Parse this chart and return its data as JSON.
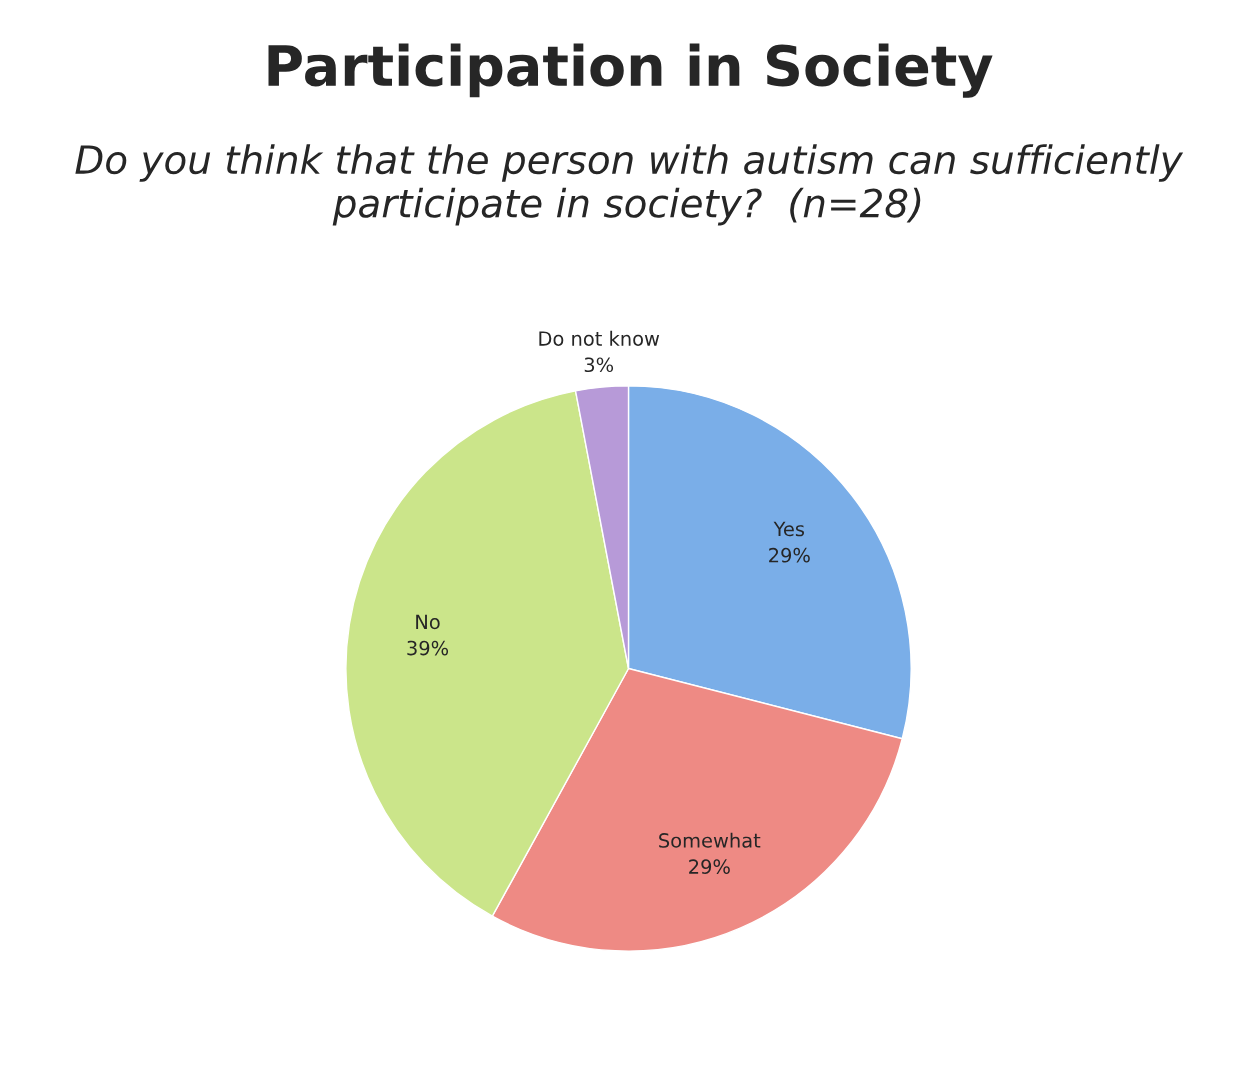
{
  "chart_data": {
    "type": "pie",
    "title": "Participation in Society",
    "subtitle": "Do you think that the person with autism can sufficiently participate in society?  (n=28)",
    "categories": [
      "Yes",
      "Somewhat",
      "No",
      "Do not know"
    ],
    "values": [
      29,
      29,
      39,
      3
    ],
    "colors": [
      "#7aaee8",
      "#ee8a84",
      "#cbe58a",
      "#b79ad8"
    ],
    "value_labels": [
      "29%",
      "29%",
      "39%",
      "3%"
    ],
    "legend": false
  }
}
